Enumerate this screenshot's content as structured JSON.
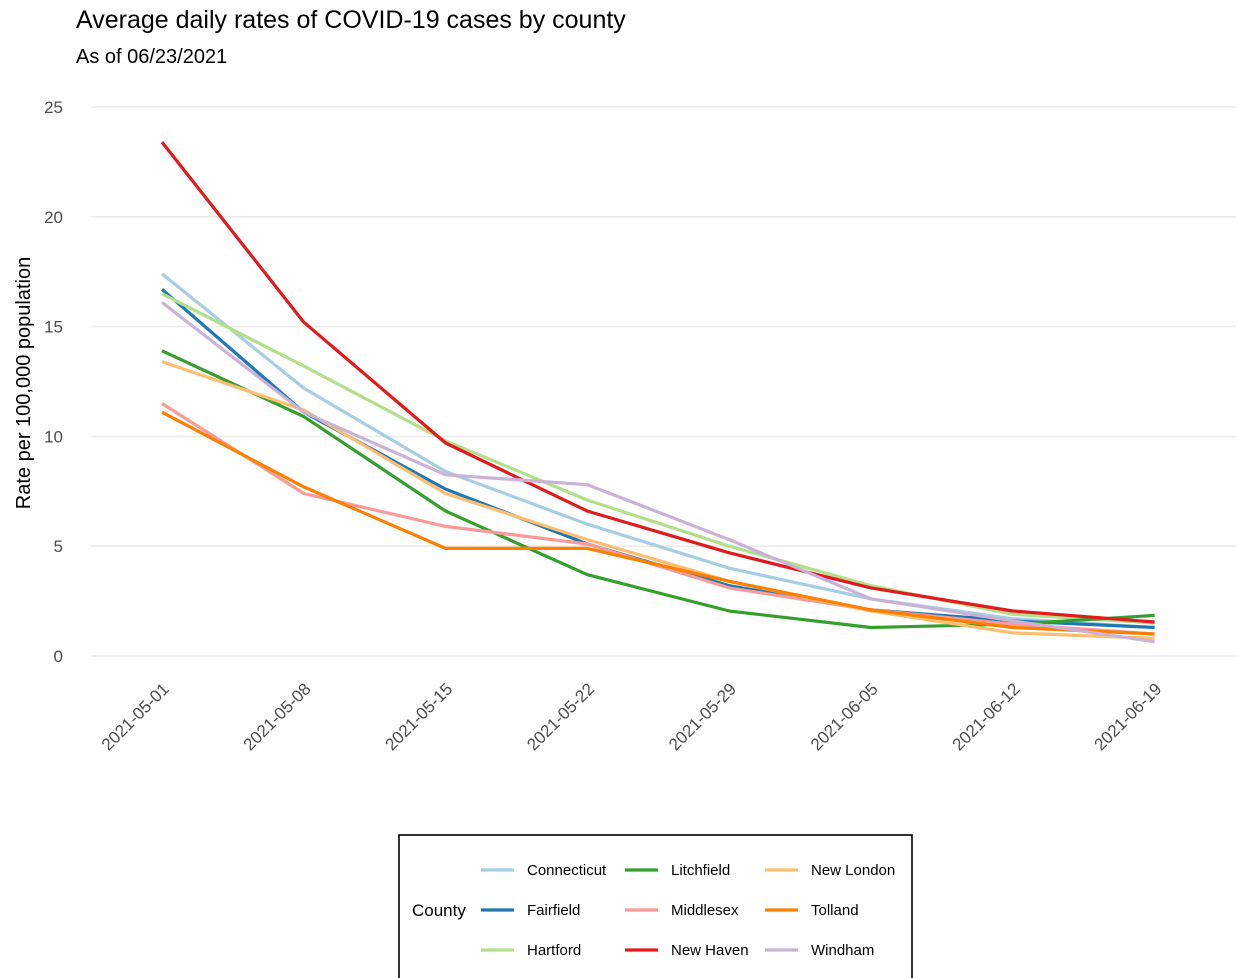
{
  "chart_data": {
    "type": "line",
    "title": "Average daily rates of COVID-19 cases by county",
    "subtitle": "As of 06/23/2021",
    "xlabel": "",
    "ylabel": "Rate per 100,000 population",
    "ylim": [
      0,
      25
    ],
    "yticks": [
      "0",
      "5",
      "10",
      "15",
      "20",
      "25"
    ],
    "x": [
      "2021-05-01",
      "2021-05-08",
      "2021-05-15",
      "2021-05-22",
      "2021-05-29",
      "2021-06-05",
      "2021-06-12",
      "2021-06-19"
    ],
    "grid": true,
    "legend_title": "County",
    "legend_position": "bottom",
    "series": [
      {
        "name": "Connecticut",
        "color": "#a6cee3",
        "values": [
          17.4,
          12.2,
          8.4,
          6.0,
          4.0,
          2.6,
          1.7,
          1.3
        ]
      },
      {
        "name": "Fairfield",
        "color": "#1f78b4",
        "values": [
          16.7,
          11.1,
          7.6,
          5.1,
          3.2,
          2.1,
          1.6,
          1.3
        ]
      },
      {
        "name": "Hartford",
        "color": "#b2df8a",
        "values": [
          16.5,
          13.2,
          9.8,
          7.1,
          5.0,
          3.2,
          1.9,
          1.5
        ]
      },
      {
        "name": "Litchfield",
        "color": "#33a02c",
        "values": [
          13.9,
          10.9,
          6.6,
          3.7,
          2.05,
          1.3,
          1.45,
          1.85
        ]
      },
      {
        "name": "Middlesex",
        "color": "#fb9a99",
        "values": [
          11.5,
          7.4,
          5.9,
          5.1,
          3.1,
          2.1,
          1.45,
          1.0
        ]
      },
      {
        "name": "New Haven",
        "color": "#e31a1c",
        "values": [
          23.4,
          15.2,
          9.7,
          6.6,
          4.7,
          3.1,
          2.05,
          1.55
        ]
      },
      {
        "name": "New London",
        "color": "#fdbf6f",
        "values": [
          13.4,
          11.2,
          7.4,
          5.3,
          3.4,
          2.05,
          1.05,
          0.8
        ]
      },
      {
        "name": "Tolland",
        "color": "#ff7f00",
        "values": [
          11.1,
          7.7,
          4.9,
          4.9,
          3.4,
          2.1,
          1.3,
          1.0
        ]
      },
      {
        "name": "Windham",
        "color": "#cab2d6",
        "values": [
          16.1,
          11.1,
          8.25,
          7.8,
          5.3,
          2.6,
          1.6,
          0.65
        ]
      }
    ]
  }
}
